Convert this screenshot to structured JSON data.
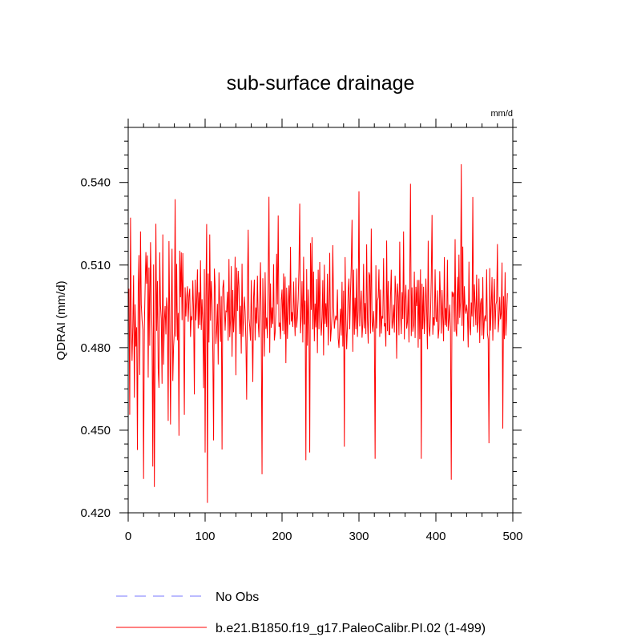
{
  "chart_data": {
    "type": "line",
    "title": "sub-surface drainage",
    "units_label": "mm/d",
    "xlabel": "",
    "ylabel": "QDRAI  (mm/d)",
    "xlim": [
      0,
      500
    ],
    "ylim": [
      0.42,
      0.56
    ],
    "x_ticks": [
      0,
      100,
      200,
      300,
      400,
      500
    ],
    "x_tick_labels": [
      "0",
      "100",
      "200",
      "300",
      "400",
      "500"
    ],
    "y_ticks": [
      0.42,
      0.45,
      0.48,
      0.51,
      0.54
    ],
    "y_tick_labels": [
      "0.420",
      "0.450",
      "0.480",
      "0.510",
      "0.540"
    ],
    "grid": false,
    "legend_position": "bottom-left",
    "series": [
      {
        "name": "No Obs",
        "color": "#7777ff",
        "dash": "dashed",
        "values": []
      },
      {
        "name": "b.e21.B1850.f19_g17.PaleoCalibr.PI.02 (1-499)",
        "color": "#ff0000",
        "dash": "solid",
        "x_start": 1,
        "values": [
          0.5014,
          0.4556,
          0.5272,
          0.4902,
          0.4752,
          0.4875,
          0.5063,
          0.4618,
          0.4957,
          0.4804,
          0.4874,
          0.4428,
          0.5011,
          0.5136,
          0.4701,
          0.5222,
          0.4957,
          0.4901,
          0.4864,
          0.4323,
          0.4876,
          0.5019,
          0.5147,
          0.5032,
          0.5135,
          0.4691,
          0.5091,
          0.4807,
          0.5183,
          0.5016,
          0.4846,
          0.4368,
          0.5102,
          0.4294,
          0.4785,
          0.525,
          0.4861,
          0.5042,
          0.4724,
          0.4654,
          0.5146,
          0.4954,
          0.4905,
          0.4669,
          0.5211,
          0.4738,
          0.4898,
          0.4951,
          0.4848,
          0.4982,
          0.4936,
          0.4534,
          0.5187,
          0.4888,
          0.4521,
          0.4916,
          0.5159,
          0.4679,
          0.4804,
          0.4858,
          0.5339,
          0.484,
          0.5104,
          0.4827,
          0.4926,
          0.448,
          0.5152,
          0.4983,
          0.5146,
          0.49,
          0.5143,
          0.4887,
          0.4556,
          0.5019,
          0.4913,
          0.4982,
          0.5023,
          0.4894,
          0.4986,
          0.5014,
          0.4839,
          0.4914,
          0.49,
          0.5044,
          0.4933,
          0.463,
          0.5047,
          0.4899,
          0.4965,
          0.5084,
          0.487,
          0.5001,
          0.4882,
          0.5117,
          0.4864,
          0.4976,
          0.4888,
          0.4653,
          0.5085,
          0.4419,
          0.4988,
          0.5249,
          0.4236,
          0.5069,
          0.4819,
          0.5211,
          0.4898,
          0.5042,
          0.497,
          0.4784,
          0.4463,
          0.5087,
          0.5024,
          0.4813,
          0.4864,
          0.4959,
          0.4739,
          0.5073,
          0.4952,
          0.4821,
          0.4987,
          0.443,
          0.5015,
          0.5046,
          0.4958,
          0.4862,
          0.4933,
          0.4931,
          0.5003,
          0.4825,
          0.5122,
          0.4838,
          0.49,
          0.5096,
          0.4767,
          0.5009,
          0.4856,
          0.4918,
          0.513,
          0.47,
          0.5091,
          0.4933,
          0.5079,
          0.5023,
          0.4849,
          0.4952,
          0.4778,
          0.5105,
          0.4839,
          0.4902,
          0.4985,
          0.4932,
          0.4825,
          0.4611,
          0.5014,
          0.5228,
          0.4906,
          0.4876,
          0.4825,
          0.5045,
          0.4873,
          0.4675,
          0.4982,
          0.5047,
          0.4826,
          0.4946,
          0.4888,
          0.5061,
          0.4893,
          0.4837,
          0.4982,
          0.511,
          0.4848,
          0.434,
          0.5052,
          0.491,
          0.4768,
          0.5074,
          0.4868,
          0.4909,
          0.4834,
          0.5049,
          0.5348,
          0.4781,
          0.5033,
          0.4872,
          0.4946,
          0.4886,
          0.5103,
          0.4826,
          0.4853,
          0.4927,
          0.5141,
          0.4957,
          0.528,
          0.4876,
          0.4891,
          0.4831,
          0.4973,
          0.5011,
          0.4861,
          0.5069,
          0.4848,
          0.5058,
          0.4744,
          0.5018,
          0.4832,
          0.4946,
          0.5026,
          0.4883,
          0.5166,
          0.4895,
          0.4929,
          0.4875,
          0.504,
          0.4923,
          0.4842,
          0.5054,
          0.4873,
          0.4914,
          0.4977,
          0.5087,
          0.5323,
          0.4852,
          0.4911,
          0.5041,
          0.4819,
          0.513,
          0.4884,
          0.4971,
          0.4391,
          0.5085,
          0.4807,
          0.5011,
          0.4878,
          0.4419,
          0.518,
          0.4937,
          0.5201,
          0.4866,
          0.5076,
          0.4823,
          0.496,
          0.4874,
          0.5049,
          0.478,
          0.5083,
          0.4867,
          0.5111,
          0.4913,
          0.4844,
          0.491,
          0.5045,
          0.4772,
          0.5101,
          0.4886,
          0.4961,
          0.4875,
          0.5068,
          0.4808,
          0.493,
          0.5144,
          0.4822,
          0.4865,
          0.4917,
          0.5172,
          0.4947,
          0.4869,
          0.4901,
          0.4916,
          0.4899,
          0.5011,
          0.4834,
          0.4799,
          0.4877,
          0.4941,
          0.4844,
          0.5039,
          0.4804,
          0.5007,
          0.444,
          0.5129,
          0.4906,
          0.4794,
          0.4878,
          0.5007,
          0.5051,
          0.4867,
          0.4999,
          0.5097,
          0.5264,
          0.4785,
          0.5083,
          0.4847,
          0.4981,
          0.4867,
          0.5087,
          0.4839,
          0.4935,
          0.5368,
          0.4877,
          0.495,
          0.5007,
          0.4836,
          0.4886,
          0.5104,
          0.487,
          0.4962,
          0.4849,
          0.5175,
          0.4907,
          0.4815,
          0.5074,
          0.5061,
          0.4851,
          0.5232,
          0.4893,
          0.4857,
          0.4933,
          0.4867,
          0.4396,
          0.5099,
          0.487,
          0.497,
          0.4983,
          0.5084,
          0.4839,
          0.5011,
          0.4851,
          0.4915,
          0.4906,
          0.5125,
          0.4877,
          0.4889,
          0.4804,
          0.5189,
          0.486,
          0.5042,
          0.4848,
          0.4847,
          0.4984,
          0.5083,
          0.4869,
          0.4895,
          0.4956,
          0.4855,
          0.5061,
          0.4989,
          0.476,
          0.5033,
          0.4983,
          0.4845,
          0.5185,
          0.4927,
          0.4849,
          0.5002,
          0.4904,
          0.5222,
          0.483,
          0.4973,
          0.5028,
          0.4869,
          0.4892,
          0.5011,
          0.4819,
          0.503,
          0.5395,
          0.4842,
          0.5019,
          0.4858,
          0.4883,
          0.5076,
          0.4835,
          0.5021,
          0.4951,
          0.5046,
          0.48,
          0.5046,
          0.4831,
          0.5084,
          0.4396,
          0.5032,
          0.4867,
          0.5021,
          0.4849,
          0.492,
          0.5051,
          0.4937,
          0.4794,
          0.5188,
          0.4876,
          0.4841,
          0.4918,
          0.5053,
          0.5282,
          0.4847,
          0.491,
          0.488,
          0.5084,
          0.4909,
          0.4893,
          0.5008,
          0.4833,
          0.4867,
          0.5078,
          0.4974,
          0.4851,
          0.5009,
          0.491,
          0.4823,
          0.5129,
          0.4881,
          0.4944,
          0.4876,
          0.5119,
          0.4861,
          0.4899,
          0.4956,
          0.4861,
          0.432,
          0.5004,
          0.4985,
          0.5001,
          0.4858,
          0.5194,
          0.4866,
          0.4841,
          0.5057,
          0.4885,
          0.5138,
          0.4908,
          0.4964,
          0.5466,
          0.4879,
          0.5167,
          0.4824,
          0.5023,
          0.4945,
          0.4923,
          0.4956,
          0.4924,
          0.4801,
          0.5112,
          0.488,
          0.4845,
          0.4964,
          0.4913,
          0.5347,
          0.4876,
          0.503,
          0.4954,
          0.4881,
          0.5065,
          0.4854,
          0.4896,
          0.5051,
          0.4817,
          0.4959,
          0.4979,
          0.4844,
          0.5056,
          0.4831,
          0.4901,
          0.4917,
          0.4895,
          0.5084,
          0.4851,
          0.4831,
          0.4453,
          0.5089,
          0.4862,
          0.4951,
          0.5056,
          0.4825,
          0.4958,
          0.505,
          0.4866,
          0.4956,
          0.4969,
          0.5176,
          0.4856,
          0.4902,
          0.4984,
          0.4903,
          0.4925,
          0.5109,
          0.4506,
          0.4987,
          0.4831,
          0.5074,
          0.4844,
          0.4916,
          0.4998
        ]
      }
    ]
  }
}
